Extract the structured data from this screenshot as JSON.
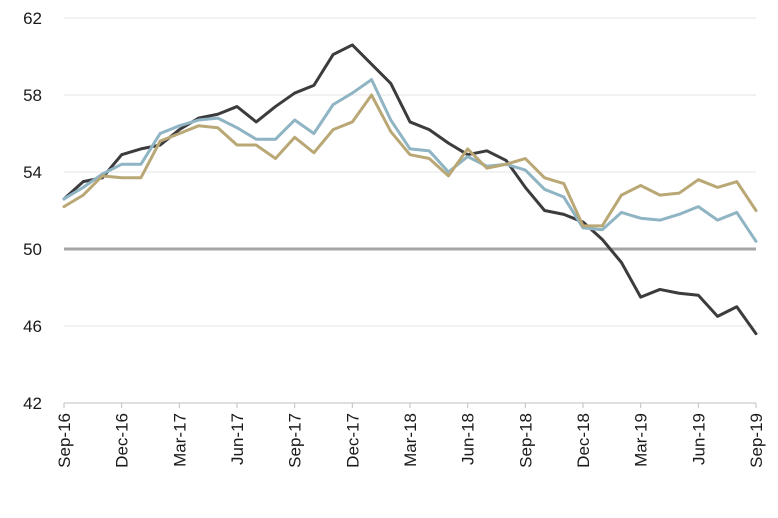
{
  "chart_data": {
    "type": "line",
    "title": "",
    "xlabel": "",
    "ylabel": "",
    "ylim": [
      42,
      62
    ],
    "yticks": [
      42,
      46,
      50,
      54,
      58,
      62
    ],
    "grid": "horizontal",
    "legend": "none",
    "reference_line": {
      "value": 50,
      "color": "#a6a6a6"
    },
    "x": [
      "Sep-16",
      "Oct-16",
      "Nov-16",
      "Dec-16",
      "Jan-17",
      "Feb-17",
      "Mar-17",
      "Apr-17",
      "May-17",
      "Jun-17",
      "Jul-17",
      "Aug-17",
      "Sep-17",
      "Oct-17",
      "Nov-17",
      "Dec-17",
      "Jan-18",
      "Feb-18",
      "Mar-18",
      "Apr-18",
      "May-18",
      "Jun-18",
      "Jul-18",
      "Aug-18",
      "Sep-18",
      "Oct-18",
      "Nov-18",
      "Dec-18",
      "Jan-19",
      "Feb-19",
      "Mar-19",
      "Apr-19",
      "May-19",
      "Jun-19",
      "Jul-19",
      "Aug-19",
      "Sep-19"
    ],
    "xtick_labels": [
      "Sep-16",
      "Dec-16",
      "Mar-17",
      "Jun-17",
      "Sep-17",
      "Dec-17",
      "Mar-18",
      "Jun-18",
      "Sep-18",
      "Dec-18",
      "Mar-19",
      "Jun-19",
      "Sep-19"
    ],
    "series": [
      {
        "color": "#3c3c3f",
        "values": [
          52.6,
          53.5,
          53.7,
          54.9,
          55.2,
          55.4,
          56.2,
          56.8,
          57.0,
          57.4,
          56.6,
          57.4,
          58.1,
          58.5,
          60.1,
          60.6,
          59.6,
          58.6,
          56.6,
          56.2,
          55.5,
          54.9,
          55.1,
          54.6,
          53.2,
          52.0,
          51.8,
          51.4,
          50.5,
          49.3,
          47.5,
          47.9,
          47.7,
          47.6,
          46.5,
          47.0,
          45.6
        ]
      },
      {
        "color": "#8fb4c3",
        "values": [
          52.6,
          53.2,
          53.9,
          54.4,
          54.4,
          56.0,
          56.4,
          56.7,
          56.8,
          56.3,
          55.7,
          55.7,
          56.7,
          56.0,
          57.5,
          58.1,
          58.8,
          56.7,
          55.2,
          55.1,
          54.0,
          54.8,
          54.3,
          54.4,
          54.1,
          53.1,
          52.7,
          51.1,
          51.0,
          51.9,
          51.6,
          51.5,
          51.8,
          52.2,
          51.5,
          51.9,
          50.4
        ]
      },
      {
        "color": "#b9a875",
        "values": [
          52.2,
          52.8,
          53.8,
          53.7,
          53.7,
          55.6,
          56.0,
          56.4,
          56.3,
          55.4,
          55.4,
          54.7,
          55.8,
          55.0,
          56.2,
          56.6,
          58.0,
          56.1,
          54.9,
          54.7,
          53.8,
          55.2,
          54.2,
          54.4,
          54.7,
          53.7,
          53.4,
          51.2,
          51.2,
          52.8,
          53.3,
          52.8,
          52.9,
          53.6,
          53.2,
          53.5,
          52.0
        ]
      }
    ]
  }
}
